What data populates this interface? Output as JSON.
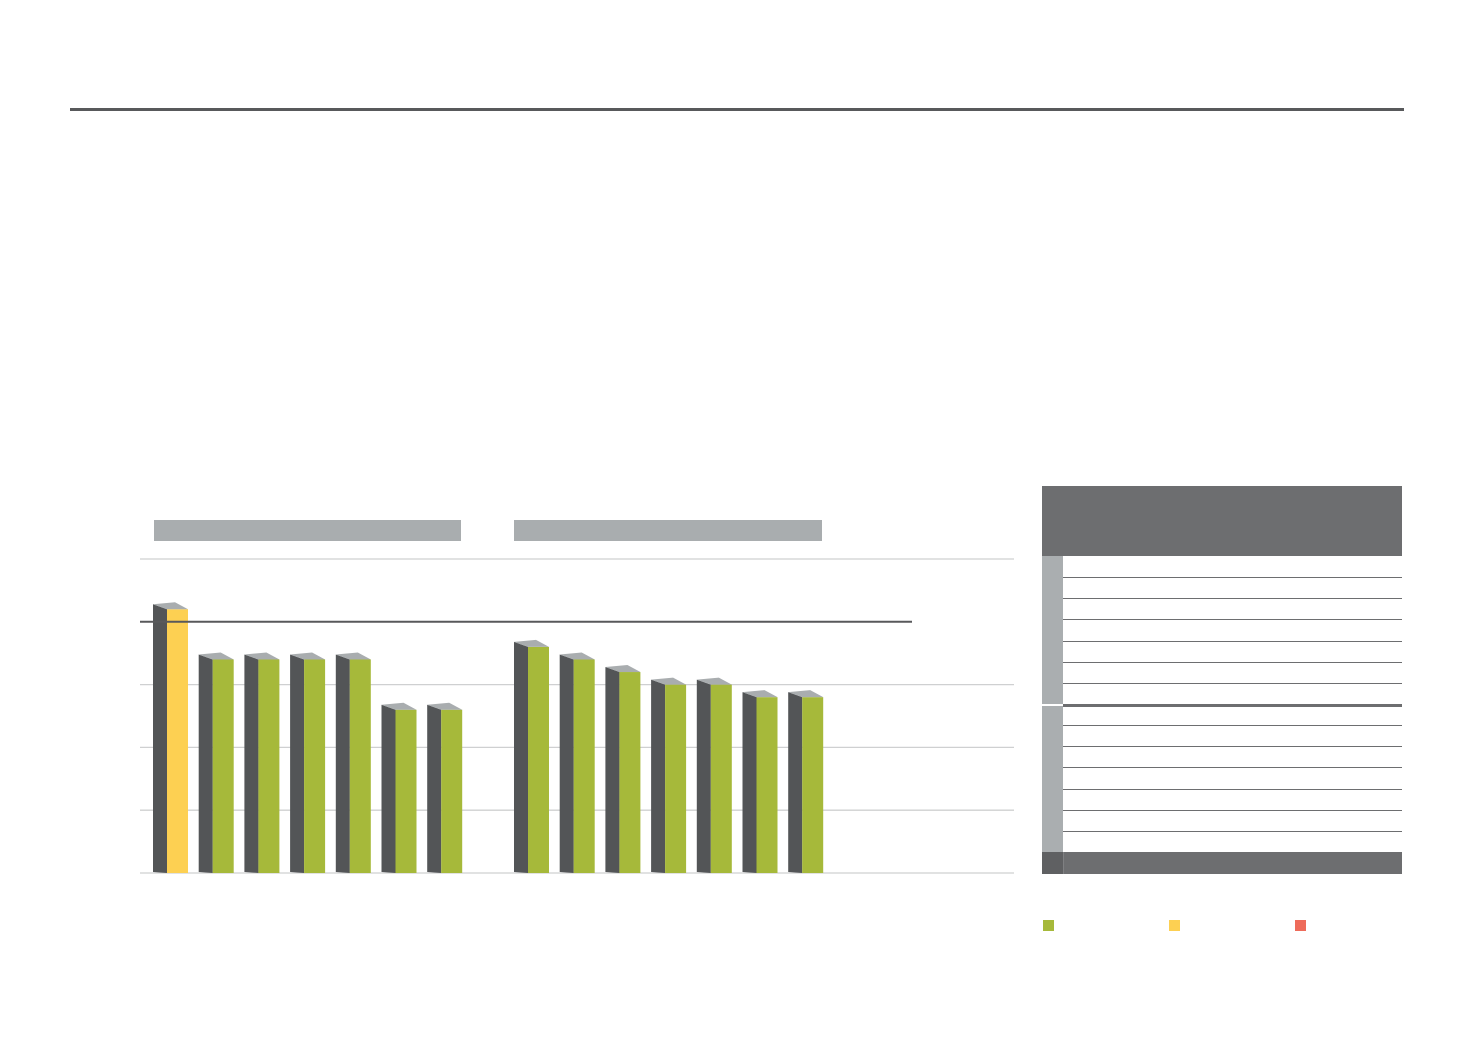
{
  "colors": {
    "green": "#a6b93a",
    "yellow": "#fdd052",
    "red": "#ee6b5a",
    "side": "#535557",
    "cap": "#a9adaf",
    "header": "#6d6e70",
    "grid": "#cfd0d1",
    "reference": "#58595b"
  },
  "chart_data": {
    "type": "bar",
    "style": "3d-column",
    "ylim": [
      0,
      5
    ],
    "grid": true,
    "reference_line": 4.0,
    "groups": [
      {
        "values": [
          4.2,
          3.4,
          3.4,
          3.4,
          3.4,
          2.6,
          2.6
        ],
        "highlight": [
          0
        ]
      },
      {
        "values": [
          3.6,
          3.4,
          3.2,
          3.0,
          3.0,
          2.8,
          2.8
        ],
        "highlight": []
      }
    ]
  },
  "table": {
    "body_rows": 14,
    "group_sizes": [
      7,
      7
    ]
  },
  "legend": [
    {
      "color": "green"
    },
    {
      "color": "yellow"
    },
    {
      "color": "red"
    }
  ]
}
